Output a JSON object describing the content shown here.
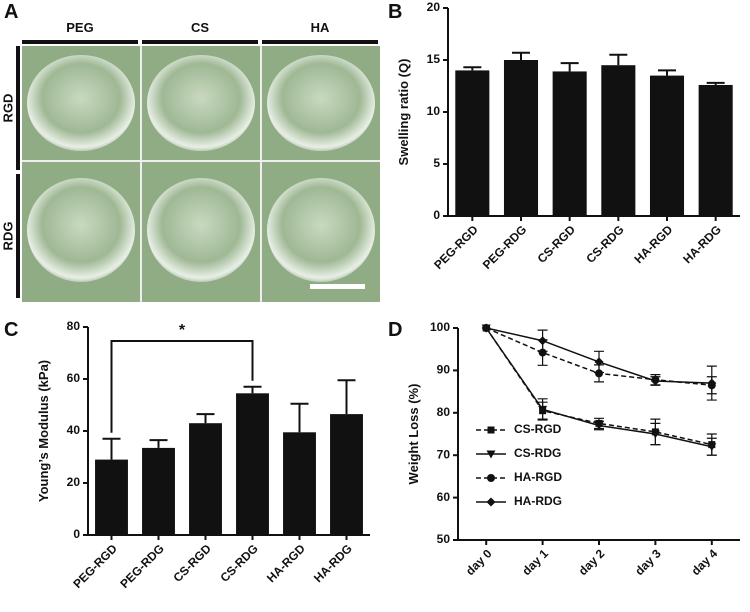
{
  "photo_panel": {
    "label": "A",
    "columns": [
      "PEG",
      "CS",
      "HA"
    ],
    "rows": [
      "RGD",
      "RDG"
    ]
  },
  "chart_data": [
    {
      "type": "bar",
      "panel_label": "B",
      "ylabel": "Swelling ratio (Q)",
      "categories": [
        "PEG-RGD",
        "PEG-RDG",
        "CS-RGD",
        "CS-RDG",
        "HA-RGD",
        "HA-RDG"
      ],
      "values": [
        14.0,
        15.0,
        13.9,
        14.5,
        13.5,
        12.6
      ],
      "errors": [
        0.3,
        0.7,
        0.8,
        1.0,
        0.5,
        0.2
      ],
      "color": "#111111",
      "ylim": [
        0,
        20
      ],
      "yticks": [
        0,
        5,
        10,
        15,
        20
      ]
    },
    {
      "type": "bar",
      "panel_label": "C",
      "ylabel": "Young’s Modulus (kPa)",
      "categories": [
        "PEG-RGD",
        "PEG-RDG",
        "CS-RGD",
        "CS-RDG",
        "HA-RGD",
        "HA-RDG"
      ],
      "values": [
        29,
        33.5,
        43,
        54.5,
        39.5,
        46.5
      ],
      "errors": [
        8,
        3,
        3.5,
        2.5,
        11,
        13
      ],
      "color": "#111111",
      "ylim": [
        0,
        80
      ],
      "yticks": [
        0,
        20,
        40,
        60,
        80
      ],
      "significance": {
        "text": "*",
        "between": [
          "PEG-RGD",
          "CS-RDG"
        ]
      }
    },
    {
      "type": "line",
      "panel_label": "D",
      "ylabel": "Weight Loss (%)",
      "categories": [
        "day 0",
        "day 1",
        "day 2",
        "day 3",
        "day 4"
      ],
      "ylim": [
        50,
        100
      ],
      "yticks": [
        50,
        60,
        70,
        80,
        90,
        100
      ],
      "legend": "lower left",
      "series": [
        {
          "name": "CS-RGD",
          "color": "#111111",
          "marker": "square",
          "dashed": true,
          "values": [
            100,
            80.5,
            77.5,
            75.5,
            72.5
          ],
          "errors": [
            0,
            2,
            1.2,
            3,
            2.5
          ]
        },
        {
          "name": "CS-RDG",
          "color": "#111111",
          "marker": "triangle-down",
          "dashed": false,
          "values": [
            100,
            80.8,
            77,
            75,
            72
          ],
          "errors": [
            0,
            2.5,
            1,
            2.5,
            2
          ]
        },
        {
          "name": "HA-RGD",
          "color": "#111111",
          "marker": "circle",
          "dashed": true,
          "values": [
            100,
            94.2,
            89.3,
            87.8,
            86.5
          ],
          "errors": [
            0,
            3,
            2,
            1.2,
            2
          ]
        },
        {
          "name": "HA-RDG",
          "color": "#111111",
          "marker": "diamond",
          "dashed": false,
          "values": [
            100,
            97,
            92,
            87.5,
            87
          ],
          "errors": [
            0,
            2.5,
            2.5,
            1,
            4
          ]
        }
      ]
    }
  ]
}
